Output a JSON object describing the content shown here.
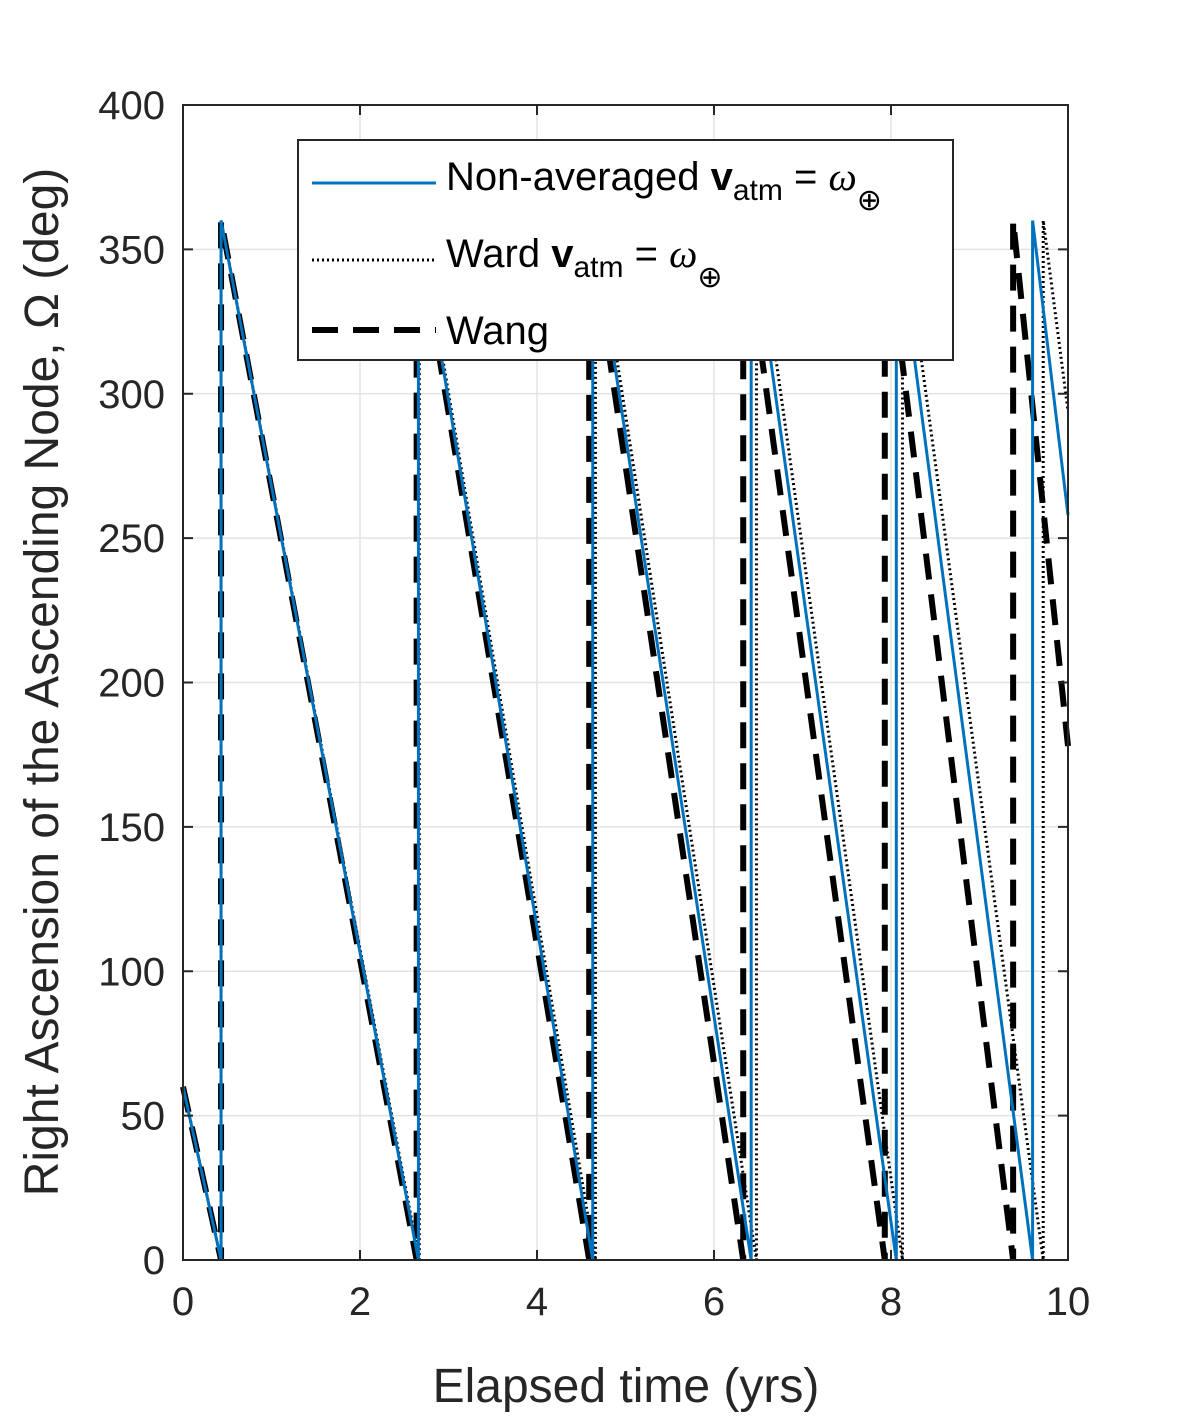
{
  "chart_data": {
    "type": "line",
    "xlabel": "Elapsed time (yrs)",
    "ylabel": "Right Ascension of the Ascending Node, Ω (deg)",
    "xlim": [
      0,
      10
    ],
    "ylim": [
      0,
      400
    ],
    "xticks": [
      "0",
      "2",
      "4",
      "6",
      "8",
      "10"
    ],
    "yticks": [
      "0",
      "50",
      "100",
      "150",
      "200",
      "250",
      "300",
      "350",
      "400"
    ],
    "grid": true,
    "legend_placement": "top-center",
    "series": [
      {
        "name": "Non-averaged v_atm = ω⊕",
        "style": "solid",
        "color": "#0072BD",
        "points": [
          [
            0,
            60
          ],
          [
            0.43,
            0
          ],
          [
            0.43,
            360
          ],
          [
            2.66,
            0
          ],
          [
            2.66,
            360
          ],
          [
            4.63,
            0
          ],
          [
            4.63,
            360
          ],
          [
            6.42,
            0
          ],
          [
            6.42,
            360
          ],
          [
            8.06,
            0
          ],
          [
            8.06,
            360
          ],
          [
            9.6,
            0
          ],
          [
            9.6,
            360
          ],
          [
            10.0,
            258
          ]
        ]
      },
      {
        "name": "Ward v_atm = ω⊕",
        "style": "dotted",
        "color": "#000000",
        "points": [
          [
            0,
            60
          ],
          [
            0.43,
            0
          ],
          [
            0.43,
            360
          ],
          [
            2.67,
            0
          ],
          [
            2.67,
            360
          ],
          [
            4.66,
            0
          ],
          [
            4.66,
            360
          ],
          [
            6.48,
            0
          ],
          [
            6.48,
            360
          ],
          [
            8.13,
            0
          ],
          [
            8.13,
            360
          ],
          [
            9.72,
            0
          ],
          [
            9.72,
            360
          ],
          [
            10.0,
            294
          ]
        ]
      },
      {
        "name": "Wang",
        "style": "dashed",
        "color": "#000000",
        "points": [
          [
            0,
            60
          ],
          [
            0.43,
            0
          ],
          [
            0.43,
            360
          ],
          [
            2.64,
            0
          ],
          [
            2.64,
            360
          ],
          [
            4.59,
            0
          ],
          [
            4.59,
            360
          ],
          [
            6.33,
            0
          ],
          [
            6.33,
            360
          ],
          [
            7.93,
            0
          ],
          [
            7.93,
            360
          ],
          [
            9.38,
            0
          ],
          [
            9.38,
            360
          ],
          [
            10.0,
            178
          ]
        ]
      }
    ],
    "legend": {
      "entries": [
        {
          "prefix": "Non-averaged ",
          "bold": "v",
          "sub": "atm",
          "mid": " = ",
          "italic": "ω",
          "subsymbol": "⊕"
        },
        {
          "prefix": "Ward ",
          "bold": "v",
          "sub": "atm",
          "mid": " = ",
          "italic": "ω",
          "subsymbol": "⊕"
        },
        {
          "prefix": "Wang",
          "bold": "",
          "sub": "",
          "mid": "",
          "italic": "",
          "subsymbol": ""
        }
      ]
    }
  }
}
